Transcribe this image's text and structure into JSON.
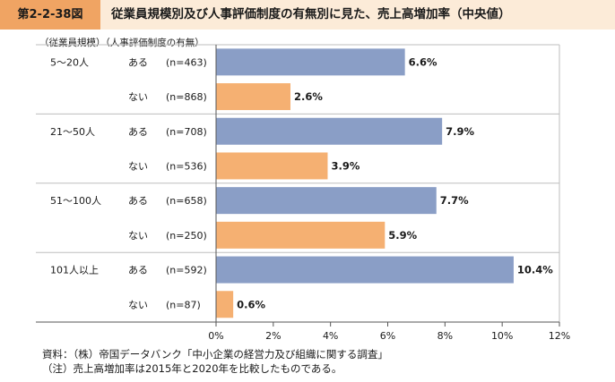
{
  "header": {
    "figure_label": "第2-2-38図",
    "title": "従業員規模別及び人事評価制度の有無別に見た、売上高増加率（中央値）"
  },
  "column_headers": "（従業員規模）（人事評価制度の有無）",
  "chart_data": {
    "type": "bar",
    "orientation": "horizontal",
    "groups": [
      {
        "name": "5〜20人",
        "rows": [
          {
            "category": "ある",
            "n": "(n=463)",
            "value": 6.6,
            "label": "6.6%"
          },
          {
            "category": "ない",
            "n": "(n=868)",
            "value": 2.6,
            "label": "2.6%"
          }
        ]
      },
      {
        "name": "21〜50人",
        "rows": [
          {
            "category": "ある",
            "n": "(n=708)",
            "value": 7.9,
            "label": "7.9%"
          },
          {
            "category": "ない",
            "n": "(n=536)",
            "value": 3.9,
            "label": "3.9%"
          }
        ]
      },
      {
        "name": "51〜100人",
        "rows": [
          {
            "category": "ある",
            "n": "(n=658)",
            "value": 7.7,
            "label": "7.7%"
          },
          {
            "category": "ない",
            "n": "(n=250)",
            "value": 5.9,
            "label": "5.9%"
          }
        ]
      },
      {
        "name": "101人以上",
        "rows": [
          {
            "category": "ある",
            "n": "(n=592)",
            "value": 10.4,
            "label": "10.4%"
          },
          {
            "category": "ない",
            "n": "(n=87)",
            "value": 0.6,
            "label": "0.6%"
          }
        ]
      }
    ],
    "xlim": [
      0,
      12
    ],
    "xticks": [
      0,
      2,
      4,
      6,
      8,
      10,
      12
    ],
    "xtick_labels": [
      "0%",
      "2%",
      "4%",
      "6%",
      "8%",
      "10%",
      "12%"
    ],
    "colors": {
      "ある": "#8a9ec6",
      "ない": "#f5b072",
      "bar_border": "#ffffff"
    },
    "grid": true
  },
  "footer": {
    "source": "資料：（株）帝国データバンク「中小企業の経営力及び組織に関する調査」",
    "note": "（注）売上高増加率は2015年と2020年を比較したものである。"
  }
}
